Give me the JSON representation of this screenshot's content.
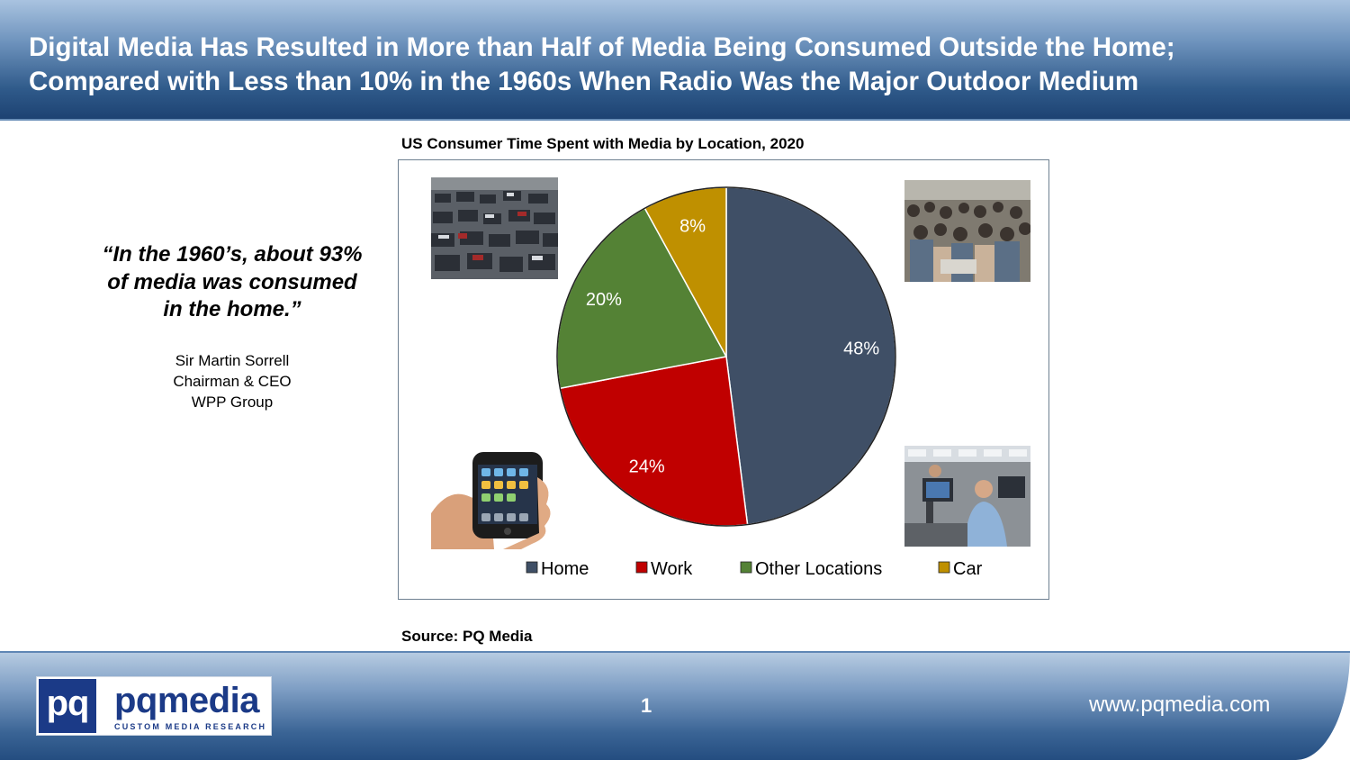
{
  "header": {
    "title_line1": "Digital Media Has Resulted in More than Half of Media Being Consumed Outside the Home;",
    "title_line2": "Compared with Less than 10% in the 1960s When Radio Was the Major Outdoor Medium"
  },
  "quote": {
    "line1": "“In the 1960’s, about 93%",
    "line2": "of media was consumed",
    "line3": "in the home.”",
    "name": "Sir Martin Sorrell",
    "role": "Chairman & CEO",
    "company": "WPP Group"
  },
  "photos": [
    "traffic-jam-photo",
    "crowd-photo",
    "smartphone-in-hand-photo",
    "office-workers-photo"
  ],
  "source": "Source: PQ Media",
  "footer": {
    "logo_mark": "pq",
    "logo_word": "pqmedia",
    "logo_tagline": "CUSTOM MEDIA RESEARCH",
    "page_number": "1",
    "website": "www.pqmedia.com"
  },
  "colors": {
    "Home": "#3f4f66",
    "Work": "#c00000",
    "Other Locations": "#548235",
    "Car": "#bf9000",
    "brand_blue": "#1b3a87"
  },
  "chart_data": {
    "type": "pie",
    "title": "US Consumer Time Spent with Media by Location, 2020",
    "categories": [
      "Home",
      "Work",
      "Other Locations",
      "Car"
    ],
    "values": [
      48,
      24,
      20,
      8
    ],
    "labels": [
      "48%",
      "24%",
      "20%",
      "8%"
    ],
    "legend": "bottom"
  }
}
